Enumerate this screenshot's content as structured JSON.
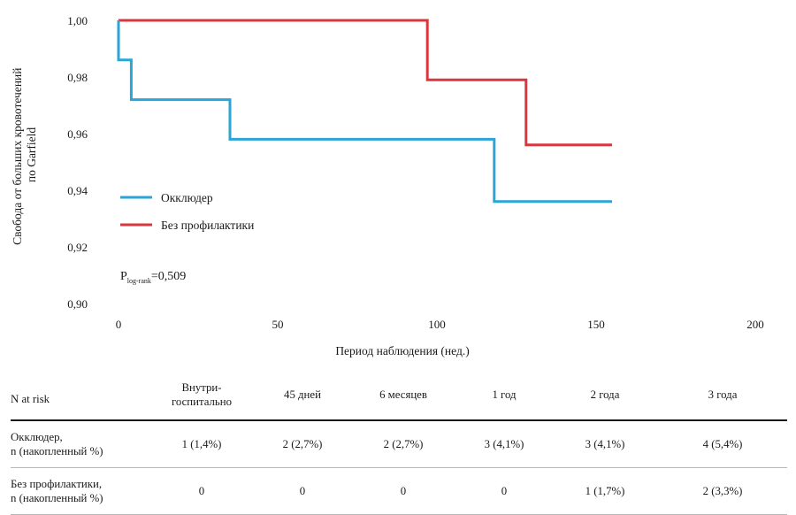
{
  "chart_data": {
    "type": "line",
    "subtype": "kaplan-meier-step",
    "ylabel_line1": "Свобода от больших кровотечений",
    "ylabel_line2": "по Garfield",
    "xlabel": "Период наблюдения (нед.)",
    "xlim": [
      0,
      200
    ],
    "ylim": [
      0.9,
      1.0
    ],
    "x_ticks": [
      0,
      50,
      100,
      150,
      200
    ],
    "x_tick_labels": [
      "0",
      "50",
      "100",
      "150",
      "200"
    ],
    "y_ticks": [
      0.9,
      0.92,
      0.94,
      0.96,
      0.98,
      1.0
    ],
    "y_tick_labels": [
      "0,90",
      "0,92",
      "0,94",
      "0,96",
      "0,98",
      "1,00"
    ],
    "legend_position": "center-left",
    "series": [
      {
        "name": "Окклюдер",
        "color": "#2aa5d6",
        "points": [
          [
            0,
            1.0
          ],
          [
            0,
            0.986
          ],
          [
            4,
            0.986
          ],
          [
            4,
            0.972
          ],
          [
            35,
            0.972
          ],
          [
            35,
            0.958
          ],
          [
            118,
            0.958
          ],
          [
            118,
            0.936
          ],
          [
            155,
            0.936
          ]
        ]
      },
      {
        "name": "Без профилактики",
        "color": "#d7373d",
        "points": [
          [
            0,
            1.0
          ],
          [
            97,
            1.0
          ],
          [
            97,
            0.979
          ],
          [
            128,
            0.979
          ],
          [
            128,
            0.956
          ],
          [
            155,
            0.956
          ]
        ]
      }
    ],
    "annotation": {
      "p_main": "P",
      "p_sub": "log-rank",
      "p_value": "=0,509"
    }
  },
  "risk_table": {
    "title": "N at risk",
    "columns": [
      {
        "line1": "Внутри-",
        "line2": "госпитально"
      },
      {
        "line1": "45 дней",
        "line2": ""
      },
      {
        "line1": "6 месяцев",
        "line2": ""
      },
      {
        "line1": "1 год",
        "line2": ""
      },
      {
        "line1": "2 года",
        "line2": ""
      },
      {
        "line1": "3 года",
        "line2": ""
      }
    ],
    "rows": [
      {
        "label_line1": "Окклюдер,",
        "label_line2": "n (накопленный %)",
        "values": [
          "1 (1,4%)",
          "2 (2,7%)",
          "2 (2,7%)",
          "3 (4,1%)",
          "3 (4,1%)",
          "4 (5,4%)"
        ]
      },
      {
        "label_line1": "Без профилактики,",
        "label_line2": "n (накопленный %)",
        "values": [
          "0",
          "0",
          "0",
          "0",
          "1 (1,7%)",
          "2 (3,3%)"
        ]
      }
    ]
  }
}
